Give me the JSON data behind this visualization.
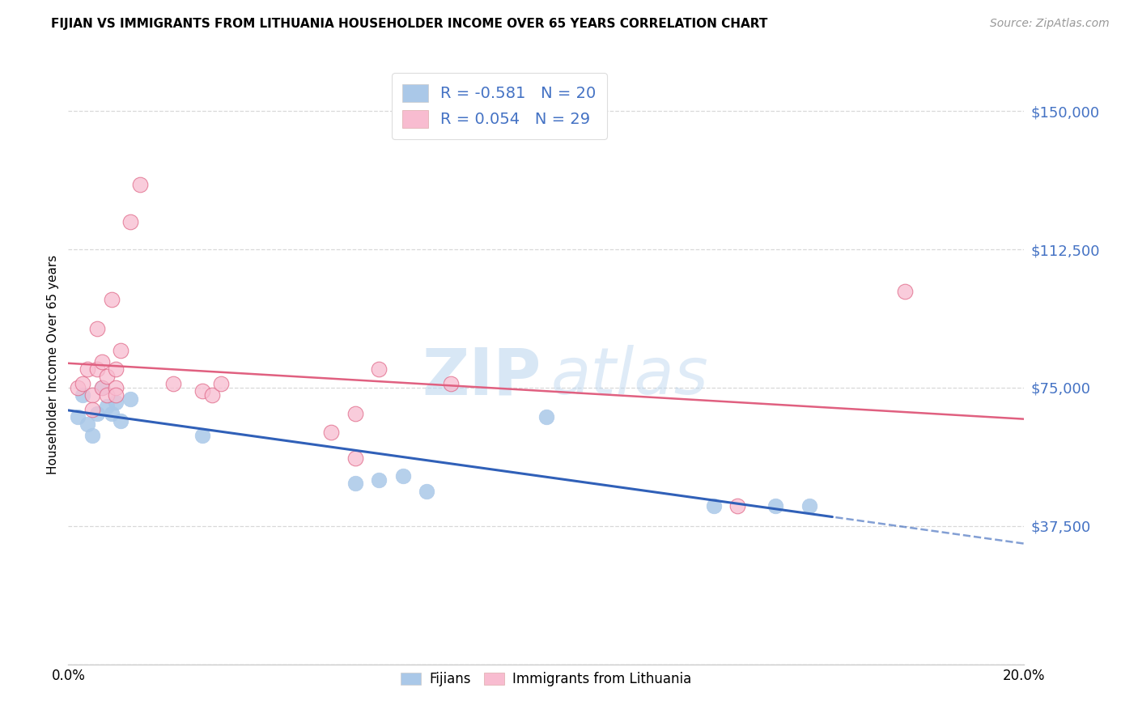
{
  "title": "FIJIAN VS IMMIGRANTS FROM LITHUANIA HOUSEHOLDER INCOME OVER 65 YEARS CORRELATION CHART",
  "source": "Source: ZipAtlas.com",
  "ylabel": "Householder Income Over 65 years",
  "watermark_zip": "ZIP",
  "watermark_atlas": "atlas",
  "xlim": [
    0.0,
    0.2
  ],
  "ylim": [
    0,
    162500
  ],
  "yticks": [
    0,
    37500,
    75000,
    112500,
    150000
  ],
  "ytick_labels": [
    "",
    "$37,500",
    "$75,000",
    "$112,500",
    "$150,000"
  ],
  "xticks": [
    0.0,
    0.04,
    0.08,
    0.12,
    0.16,
    0.2
  ],
  "xtick_labels": [
    "0.0%",
    "",
    "",
    "",
    "",
    "20.0%"
  ],
  "legend_r_fijian": "-0.581",
  "legend_n_fijian": "20",
  "legend_r_lithuania": "0.054",
  "legend_n_lithuania": "29",
  "fijian_color": "#aac8e8",
  "fijian_edge_color": "#aac8e8",
  "fijian_line_color": "#3060b8",
  "lithuania_color": "#f8bcd0",
  "lithuania_edge_color": "#e06888",
  "lithuania_line_color": "#e06080",
  "background_color": "#ffffff",
  "grid_color": "#d8d8d8",
  "fijian_x": [
    0.002,
    0.003,
    0.004,
    0.005,
    0.006,
    0.007,
    0.008,
    0.009,
    0.01,
    0.011,
    0.013,
    0.028,
    0.06,
    0.065,
    0.07,
    0.075,
    0.1,
    0.135,
    0.148,
    0.155
  ],
  "fijian_y": [
    67000,
    73000,
    65000,
    62000,
    68000,
    75000,
    70000,
    68000,
    71000,
    66000,
    72000,
    62000,
    49000,
    50000,
    51000,
    47000,
    67000,
    43000,
    43000,
    43000
  ],
  "lithuania_x": [
    0.002,
    0.003,
    0.004,
    0.005,
    0.005,
    0.006,
    0.006,
    0.007,
    0.007,
    0.008,
    0.008,
    0.009,
    0.01,
    0.01,
    0.01,
    0.011,
    0.013,
    0.015,
    0.022,
    0.028,
    0.03,
    0.032,
    0.055,
    0.06,
    0.06,
    0.065,
    0.08,
    0.14,
    0.175
  ],
  "lithuania_y": [
    75000,
    76000,
    80000,
    73000,
    69000,
    91000,
    80000,
    82000,
    75000,
    78000,
    73000,
    99000,
    75000,
    80000,
    73000,
    85000,
    120000,
    130000,
    76000,
    74000,
    73000,
    76000,
    63000,
    56000,
    68000,
    80000,
    76000,
    43000,
    101000
  ],
  "fijian_line_x_start": 0.0,
  "fijian_line_x_solid_end": 0.16,
  "fijian_line_x_end": 0.2,
  "title_fontsize": 11,
  "source_fontsize": 10,
  "tick_fontsize": 12,
  "ytick_fontsize": 13,
  "legend_fontsize": 14,
  "ylabel_fontsize": 11
}
